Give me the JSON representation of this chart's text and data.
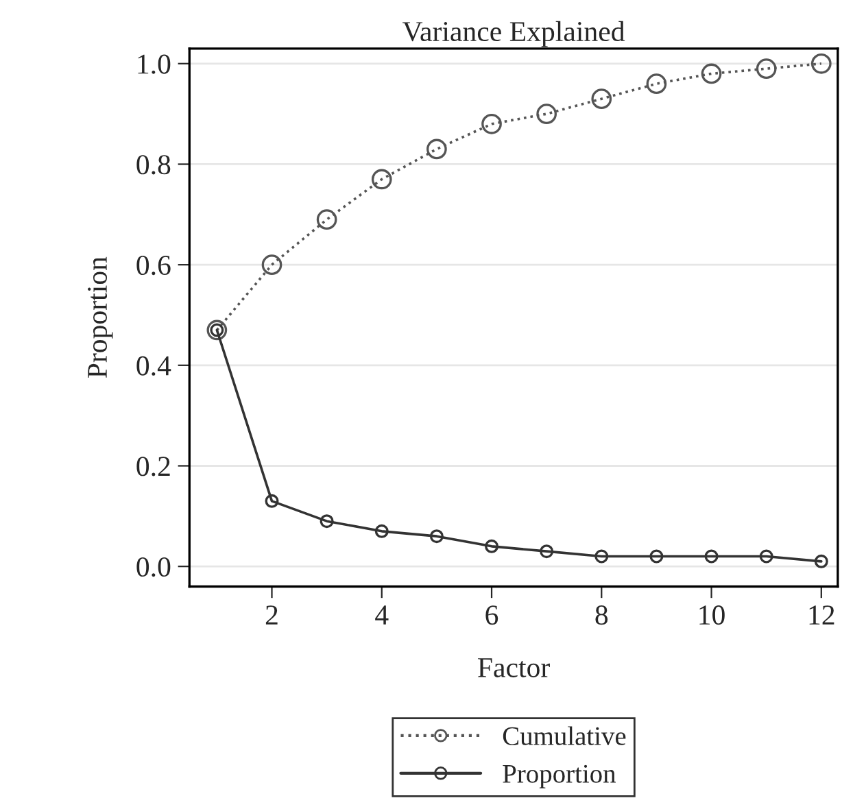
{
  "chart_data": {
    "type": "line",
    "title": "Variance Explained",
    "xlabel": "Factor",
    "ylabel": "Proportion",
    "x": [
      1,
      2,
      3,
      4,
      5,
      6,
      7,
      8,
      9,
      10,
      11,
      12
    ],
    "series": [
      {
        "name": "Cumulative",
        "color": "#555555",
        "line_style": "dotted",
        "values": [
          0.47,
          0.6,
          0.69,
          0.77,
          0.83,
          0.88,
          0.9,
          0.93,
          0.96,
          0.98,
          0.99,
          1.0
        ]
      },
      {
        "name": "Proportion",
        "color": "#333333",
        "line_style": "solid",
        "values": [
          0.47,
          0.13,
          0.09,
          0.07,
          0.06,
          0.04,
          0.03,
          0.02,
          0.02,
          0.02,
          0.02,
          0.01
        ]
      }
    ],
    "xlim": [
      0.5,
      12.3
    ],
    "ylim": [
      -0.04,
      1.03
    ],
    "xticks": [
      2,
      4,
      6,
      8,
      10,
      12
    ],
    "yticks": [
      {
        "value": 0,
        "label": "0.0"
      },
      {
        "value": 0.2,
        "label": "0.2"
      },
      {
        "value": 0.4,
        "label": "0.4"
      },
      {
        "value": 0.6,
        "label": "0.6"
      },
      {
        "value": 0.8,
        "label": "0.8"
      },
      {
        "value": 1,
        "label": "1.0"
      }
    ],
    "grid": "y",
    "legend": "bottom",
    "marker": "circle"
  }
}
